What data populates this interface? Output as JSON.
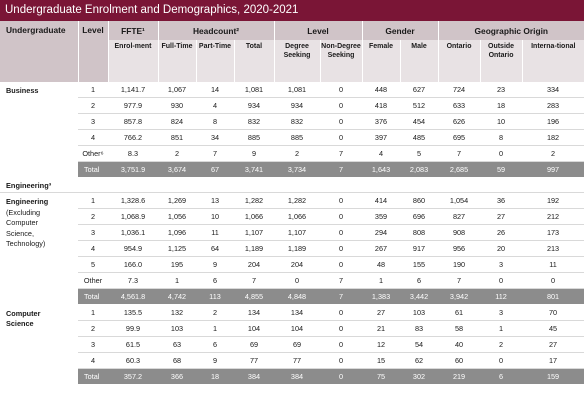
{
  "title": "Undergraduate Enrolment and Demographics, 2020-2021",
  "header": {
    "undergraduate": "Undergraduate",
    "level": "Level",
    "ffte": "FFTE¹",
    "headcount": "Headcount²",
    "level_group": "Level",
    "gender": "Gender",
    "geographic_origin": "Geographic Origin"
  },
  "subheader": {
    "enrolment": "Enrol-ment",
    "full_time": "Full-Time",
    "part_time": "Part-Time",
    "total": "Total",
    "degree_seeking": "Degree Seeking",
    "non_degree_seeking": "Non-Degree Seeking",
    "female": "Female",
    "male": "Male",
    "ontario": "Ontario",
    "outside_ontario": "Outside Ontario",
    "international": "Interna-tional"
  },
  "business": {
    "label": "Business",
    "rows": [
      {
        "level": "1",
        "ffte": "1,141.7",
        "ft": "1,067",
        "pt": "14",
        "total": "1,081",
        "deg": "1,081",
        "nondeg": "0",
        "female": "448",
        "male": "627",
        "ont": "724",
        "out": "23",
        "intl": "334"
      },
      {
        "level": "2",
        "ffte": "977.9",
        "ft": "930",
        "pt": "4",
        "total": "934",
        "deg": "934",
        "nondeg": "0",
        "female": "418",
        "male": "512",
        "ont": "633",
        "out": "18",
        "intl": "283"
      },
      {
        "level": "3",
        "ffte": "857.8",
        "ft": "824",
        "pt": "8",
        "total": "832",
        "deg": "832",
        "nondeg": "0",
        "female": "376",
        "male": "454",
        "ont": "626",
        "out": "10",
        "intl": "196"
      },
      {
        "level": "4",
        "ffte": "766.2",
        "ft": "851",
        "pt": "34",
        "total": "885",
        "deg": "885",
        "nondeg": "0",
        "female": "397",
        "male": "485",
        "ont": "695",
        "out": "8",
        "intl": "182"
      },
      {
        "level": "Other⁶",
        "ffte": "8.3",
        "ft": "2",
        "pt": "7",
        "total": "9",
        "deg": "2",
        "nondeg": "7",
        "female": "4",
        "male": "5",
        "ont": "7",
        "out": "0",
        "intl": "2"
      }
    ],
    "total": {
      "level": "Total",
      "ffte": "3,751.9",
      "ft": "3,674",
      "pt": "67",
      "total": "3,741",
      "deg": "3,734",
      "nondeg": "7",
      "female": "1,643",
      "male": "2,083",
      "ont": "2,685",
      "out": "59",
      "intl": "997"
    }
  },
  "engineering_section": "Engineering³",
  "engineering": {
    "label": "Engineering",
    "sub": [
      "(Excluding",
      "Computer",
      "Science,",
      "Technology)"
    ],
    "rows": [
      {
        "level": "1",
        "ffte": "1,328.6",
        "ft": "1,269",
        "pt": "13",
        "total": "1,282",
        "deg": "1,282",
        "nondeg": "0",
        "female": "414",
        "male": "860",
        "ont": "1,054",
        "out": "36",
        "intl": "192"
      },
      {
        "level": "2",
        "ffte": "1,068.9",
        "ft": "1,056",
        "pt": "10",
        "total": "1,066",
        "deg": "1,066",
        "nondeg": "0",
        "female": "359",
        "male": "696",
        "ont": "827",
        "out": "27",
        "intl": "212"
      },
      {
        "level": "3",
        "ffte": "1,036.1",
        "ft": "1,096",
        "pt": "11",
        "total": "1,107",
        "deg": "1,107",
        "nondeg": "0",
        "female": "294",
        "male": "808",
        "ont": "908",
        "out": "26",
        "intl": "173"
      },
      {
        "level": "4",
        "ffte": "954.9",
        "ft": "1,125",
        "pt": "64",
        "total": "1,189",
        "deg": "1,189",
        "nondeg": "0",
        "female": "267",
        "male": "917",
        "ont": "956",
        "out": "20",
        "intl": "213"
      },
      {
        "level": "5",
        "ffte": "166.0",
        "ft": "195",
        "pt": "9",
        "total": "204",
        "deg": "204",
        "nondeg": "0",
        "female": "48",
        "male": "155",
        "ont": "190",
        "out": "3",
        "intl": "11"
      },
      {
        "level": "Other",
        "ffte": "7.3",
        "ft": "1",
        "pt": "6",
        "total": "7",
        "deg": "0",
        "nondeg": "7",
        "female": "1",
        "male": "6",
        "ont": "7",
        "out": "0",
        "intl": "0"
      }
    ],
    "total": {
      "level": "Total",
      "ffte": "4,561.8",
      "ft": "4,742",
      "pt": "113",
      "total": "4,855",
      "deg": "4,848",
      "nondeg": "7",
      "female": "1,383",
      "male": "3,442",
      "ont": "3,942",
      "out": "112",
      "intl": "801"
    }
  },
  "computer_science": {
    "label": [
      "Computer",
      "Science"
    ],
    "rows": [
      {
        "level": "1",
        "ffte": "135.5",
        "ft": "132",
        "pt": "2",
        "total": "134",
        "deg": "134",
        "nondeg": "0",
        "female": "27",
        "male": "103",
        "ont": "61",
        "out": "3",
        "intl": "70"
      },
      {
        "level": "2",
        "ffte": "99.9",
        "ft": "103",
        "pt": "1",
        "total": "104",
        "deg": "104",
        "nondeg": "0",
        "female": "21",
        "male": "83",
        "ont": "58",
        "out": "1",
        "intl": "45"
      },
      {
        "level": "3",
        "ffte": "61.5",
        "ft": "63",
        "pt": "6",
        "total": "69",
        "deg": "69",
        "nondeg": "0",
        "female": "12",
        "male": "54",
        "ont": "40",
        "out": "2",
        "intl": "27"
      },
      {
        "level": "4",
        "ffte": "60.3",
        "ft": "68",
        "pt": "9",
        "total": "77",
        "deg": "77",
        "nondeg": "0",
        "female": "15",
        "male": "62",
        "ont": "60",
        "out": "0",
        "intl": "17"
      }
    ],
    "total": {
      "level": "Total",
      "ffte": "357.2",
      "ft": "366",
      "pt": "18",
      "total": "384",
      "deg": "384",
      "nondeg": "0",
      "female": "75",
      "male": "302",
      "ont": "219",
      "out": "6",
      "intl": "159"
    }
  }
}
